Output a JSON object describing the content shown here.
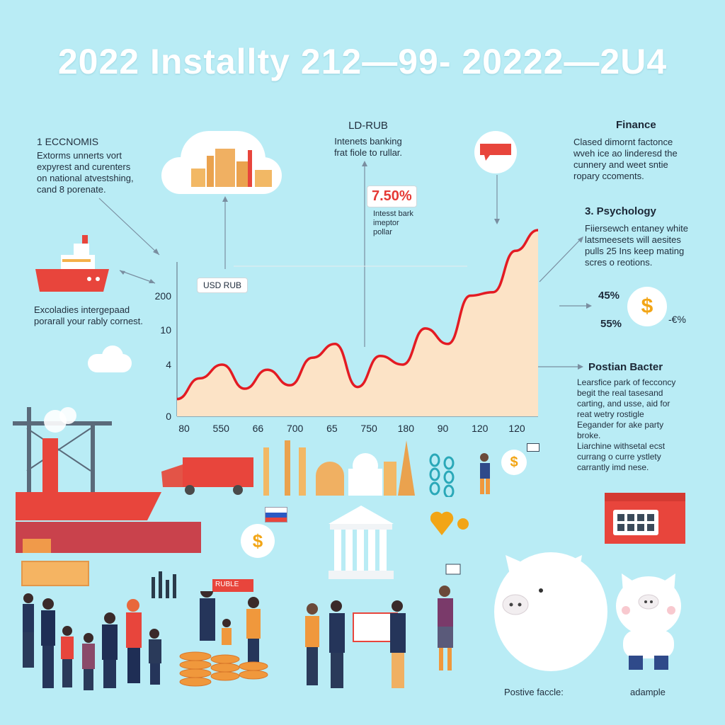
{
  "title": "2022 Installty 212—99- 20222—2U4",
  "left_block": {
    "heading": "1  ECCNOMIS",
    "lines": [
      "Extorms unnerts vort",
      "expyrest and curenters",
      "on national atvestshing,",
      "cand 8 porenate."
    ],
    "ship_caption": [
      "Excoladies intergepaad",
      "porarall your rably cornest."
    ]
  },
  "center_block": {
    "heading": "LD-RUB",
    "lines": [
      "Intenets banking",
      "frat fiole to rullar."
    ],
    "percent": "7.50%",
    "percent_lines": [
      "Intesst bark",
      "imeptor",
      "pollar"
    ],
    "usd_callout": "USD RUB"
  },
  "finance": {
    "heading": "Finance",
    "lines": [
      "Clased dimornt factonce",
      "wveh ice ao linderesd the",
      "cunnery and weet sntie",
      "ropary ccoments."
    ]
  },
  "psychology": {
    "heading": "3. Psychology",
    "lines": [
      "Fiiersewch entaney white",
      "latsmeesets will aesites",
      "pulls 25 Ins keep mating",
      "scres o reotions."
    ],
    "pct_a": "45%",
    "pct_b": "55%",
    "pct_c": "-€%"
  },
  "postian": {
    "heading": "Postian Bacter",
    "bullets": [
      [
        "Learsfice park of fecconcy",
        "begit the real tasesand",
        "carting, and usse, aid for",
        "reat wetry rostigle"
      ],
      [
        "Eegander for ake party",
        "broke."
      ],
      [
        "Liarchine withsetal ecst",
        "currang o curre ystlety",
        "carrantly imd nese."
      ]
    ]
  },
  "chart_data": {
    "type": "area",
    "x_tick_labels": [
      "80",
      "550",
      "66",
      "700",
      "65",
      "750",
      "180",
      "90",
      "120",
      "120"
    ],
    "y_tick_labels": [
      "0",
      "4",
      "10",
      "200"
    ],
    "series": [
      {
        "values": [
          1.0,
          2.2,
          3.0,
          1.6,
          2.7,
          1.8,
          3.4,
          4.2,
          1.7,
          3.5,
          3.0,
          5.1,
          4.2,
          7.0,
          7.2,
          9.6,
          10.8
        ]
      }
    ],
    "line_color": "#e31b23",
    "fill_color": "#fce3c6"
  },
  "bottom": {
    "banner_label": "RUBLE",
    "caption_left": "Postive faccle:",
    "caption_right": "adample",
    "dollar": "$"
  }
}
